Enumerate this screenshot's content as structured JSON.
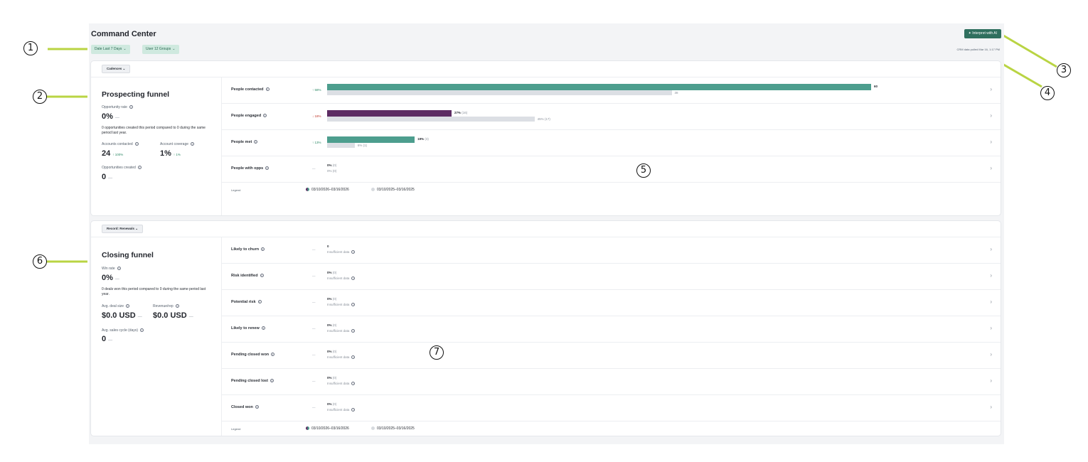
{
  "header": {
    "title": "Command Center",
    "filters": [
      {
        "label": "Date Last 7 Days"
      },
      {
        "label": "User 12 Groups"
      }
    ],
    "ai_button": "✦ Interpret with AI",
    "crm_pulled": "CRM data pulled Mar 16, 1:17 PM"
  },
  "prospecting": {
    "selector": "Cadences ⌄",
    "title": "Prospecting funnel",
    "opp_rate_label": "Opportunity rate",
    "opp_rate_value": "0%",
    "opp_rate_delta": "—",
    "description": "0 opportunities created this period compared to 0 during the same period last year.",
    "accounts_contacted_label": "Accounts contacted",
    "accounts_contacted_value": "24",
    "accounts_contacted_delta": "↑ 100%",
    "account_coverage_label": "Account coverage",
    "account_coverage_value": "1%",
    "account_coverage_delta": "↑ 1%",
    "opps_created_label": "Opportunities created",
    "opps_created_value": "0",
    "opps_created_delta": "—",
    "rows": [
      {
        "label": "People contacted",
        "delta": "↑ 58%",
        "cur_label": "60",
        "prev_label": "38"
      },
      {
        "label": "People engaged",
        "delta": "↓ 18%",
        "cur_label": "27%",
        "cur_sub": "(16)",
        "prev_label": "45% (17)"
      },
      {
        "label": "People met",
        "delta": "↑ 13%",
        "cur_label": "19%",
        "cur_sub": "(3)",
        "prev_label": "6% (1)"
      },
      {
        "label": "People with opps",
        "delta": "—",
        "line1": "0%",
        "line1_sub": "(0)",
        "line2": "0% (0)"
      }
    ],
    "legend_label": "Legend",
    "legend_current": "03/10/2026–03/16/2026",
    "legend_previous": "03/10/2025–03/16/2025"
  },
  "closing": {
    "selector": "Record: Renewals ⌄",
    "title": "Closing funnel",
    "win_rate_label": "Win rate",
    "win_rate_value": "0%",
    "win_rate_delta": "—",
    "description": "0 deals won this period compared to 0 during the same period last year.",
    "deal_size_label": "Avg. deal size",
    "deal_size_value": "$0.0 USD",
    "deal_size_delta": "—",
    "revenue_label": "Revenue/rep",
    "revenue_value": "$0.0 USD",
    "revenue_delta": "—",
    "cycle_label": "Avg. sales cycle (days)",
    "cycle_value": "0",
    "cycle_delta": "—",
    "rows": [
      {
        "label": "Likely to churn",
        "line1": "0",
        "line1_sub": "",
        "line2": "Insufficient data"
      },
      {
        "label": "Risk identified",
        "line1": "0%",
        "line1_sub": "(0)",
        "line2": "Insufficient data"
      },
      {
        "label": "Potential risk",
        "line1": "0%",
        "line1_sub": "(0)",
        "line2": "Insufficient data"
      },
      {
        "label": "Likely to renew",
        "line1": "0%",
        "line1_sub": "(0)",
        "line2": "Insufficient data"
      },
      {
        "label": "Pending closed won",
        "line1": "0%",
        "line1_sub": "(0)",
        "line2": "Insufficient data"
      },
      {
        "label": "Pending closed lost",
        "line1": "0%",
        "line1_sub": "(0)",
        "line2": "Insufficient data"
      },
      {
        "label": "Closed won",
        "line1": "0%",
        "line1_sub": "(0)",
        "line2": "Insufficient data"
      }
    ],
    "row_delta": "—",
    "legend_label": "Legend",
    "legend_current": "03/10/2026–03/16/2026",
    "legend_previous": "03/10/2025–03/16/2025"
  },
  "bars": {
    "people_contacted": {
      "current": 60,
      "previous": 38
    },
    "people_engaged": {
      "current": 27,
      "previous": 45
    },
    "people_met": {
      "current": 19,
      "previous": 6
    }
  },
  "callouts": [
    "1",
    "2",
    "3",
    "4",
    "5",
    "6",
    "7"
  ],
  "colors": {
    "accent": "#2f6f5e",
    "bar_current": "#4d9e8e",
    "bar_engaged": "#5d2c63",
    "bar_previous": "#dcdfe4",
    "annotation_line": "#b9d443"
  }
}
